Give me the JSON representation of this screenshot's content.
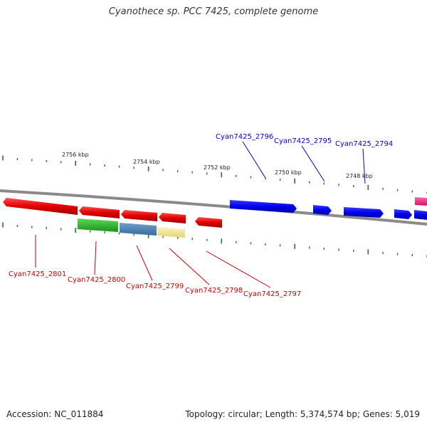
{
  "title": "Cyanothece sp. PCC 7425, complete genome",
  "footer": {
    "accession": "Accession: NC_011884",
    "summary": "Topology: circular; Length: 5,374,574 bp; Genes: 5,019"
  },
  "colors": {
    "backbone": "#8a8a8a",
    "tick": "#1f7a1f",
    "forward_gene": "#0000ee",
    "reverse_gene": "#e00000",
    "forward_label": "#0000cc",
    "reverse_label": "#cc0000"
  },
  "scale_labels": [
    "2756 kbp",
    "2754 kbp",
    "2752 kbp",
    "2750 kbp",
    "2748 kbp"
  ],
  "forward_genes": [
    {
      "label": "Cyan7425_2796",
      "color": "#0000ee"
    },
    {
      "label": "Cyan7425_2795",
      "color": "#0000ee"
    },
    {
      "label": "Cyan7425_2794",
      "color": "#0000ee"
    },
    {
      "label": "",
      "color": "#0000ee"
    },
    {
      "label": "",
      "color": "#0000ee"
    },
    {
      "label": "",
      "color": "#ee2288"
    }
  ],
  "reverse_genes": [
    {
      "label": "Cyan7425_2801",
      "color": "#e00000"
    },
    {
      "label": "Cyan7425_2800",
      "color": "#e00000"
    },
    {
      "label": "Cyan7425_2799",
      "color": "#e00000"
    },
    {
      "label": "Cyan7425_2798",
      "color": "#e00000"
    },
    {
      "label": "Cyan7425_2797",
      "color": "#e00000"
    }
  ],
  "feature_blocks": [
    {
      "name": "green-feature",
      "color": "#33bb33"
    },
    {
      "name": "steelblue-feature",
      "color": "#4a7fb0"
    },
    {
      "name": "yellow-feature",
      "color": "#f0e49a"
    }
  ]
}
